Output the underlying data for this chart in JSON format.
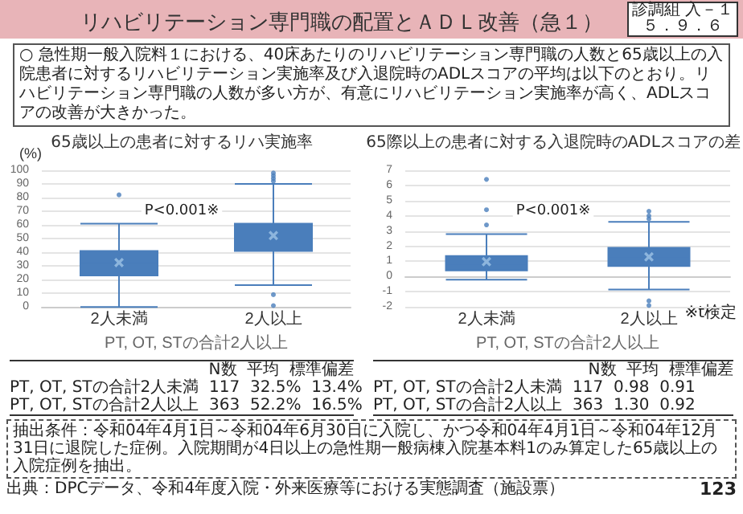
{
  "chart_data": [
    {
      "type": "other",
      "title": "リハビリテーション専門職の配置とＡＤＬ改善（急１）",
      "annotations": [
        "診調組 入－１",
        "５．９．６",
        "○ 急性期一般入院料１における、40床あたりのリハビリテーション専門職の人数と65歳以上の入院患者に対するリハビリテーション実施率及び入退院時のADLスコアの平均は以下のとおり。リハビリテーション専門職の人数が多い方が、有意にリハビリテーション実施率が高く、ADLスコアの改善が大きかった。",
        "抽出条件：令和04年4月1日～令和04年6月30日に入院し、かつ令和04年4月1日～令和04年12月31日に退院した症例。入院期間が4日以上の急性期一般病棟入院基本料1のみ算定した65歳以上の入院症例を抽出。",
        "出典：DPCデータ、令和4年度入院・外来医療等における実態調査（施設票）",
        "123"
      ]
    },
    {
      "type": "box",
      "title": "65歳以上の患者に対するリハ実施率",
      "xlabel": "PT, OT, STの合計2人以上",
      "ylabel": "(%)",
      "categories": [
        "2人未満",
        "2人以上"
      ],
      "color": "#4a7ebb",
      "boxes": [
        {
          "low": 0,
          "q1": 23,
          "median": 32,
          "q3": 41,
          "high": 61,
          "mean": 32.5,
          "outliers": [
            82
          ]
        },
        {
          "low": 16,
          "q1": 41,
          "median": 50,
          "q3": 61,
          "high": 90,
          "mean": 52.2,
          "outliers": [
            1,
            9,
            92,
            94,
            96,
            98
          ]
        }
      ],
      "ylim": [
        0,
        100
      ],
      "yticks": [
        0,
        10,
        20,
        30,
        40,
        50,
        60,
        70,
        80,
        90,
        100
      ],
      "grid": "y",
      "annotations": [
        "P<0.001※",
        "N数  平均  標準偏差",
        "PT, OT, STの合計2人未満  117  32.5%  13.4%",
        "PT, OT, STの合計2人以上  363  52.2%  16.5%"
      ]
    },
    {
      "type": "box",
      "title": "65際以上の患者に対する入退院時のADLスコアの差",
      "xlabel": "PT, OT, STの合計2人以上",
      "categories": [
        "2人未満",
        "2人以上"
      ],
      "color": "#4a7ebb",
      "boxes": [
        {
          "low": -0.2,
          "q1": 0.4,
          "median": 0.85,
          "q3": 1.35,
          "high": 2.8,
          "mean": 0.98,
          "outliers": [
            3.4,
            4.4,
            6.4
          ]
        },
        {
          "low": -0.85,
          "q1": 0.7,
          "median": 1.2,
          "q3": 1.9,
          "high": 3.6,
          "mean": 1.3,
          "outliers": [
            -1.9,
            -1.6,
            3.8,
            4.0,
            4.3
          ]
        }
      ],
      "ylim": [
        -2,
        7
      ],
      "yticks": [
        -2,
        -1,
        0,
        1,
        2,
        3,
        4,
        5,
        6,
        7
      ],
      "grid": "y",
      "annotations": [
        "P<0.001※",
        "※t検定",
        "N数  平均  標準偏差",
        "PT, OT, STの合計2人未満  117  0.98  0.91",
        "PT, OT, STの合計2人以上  363  1.30  0.92"
      ]
    }
  ]
}
